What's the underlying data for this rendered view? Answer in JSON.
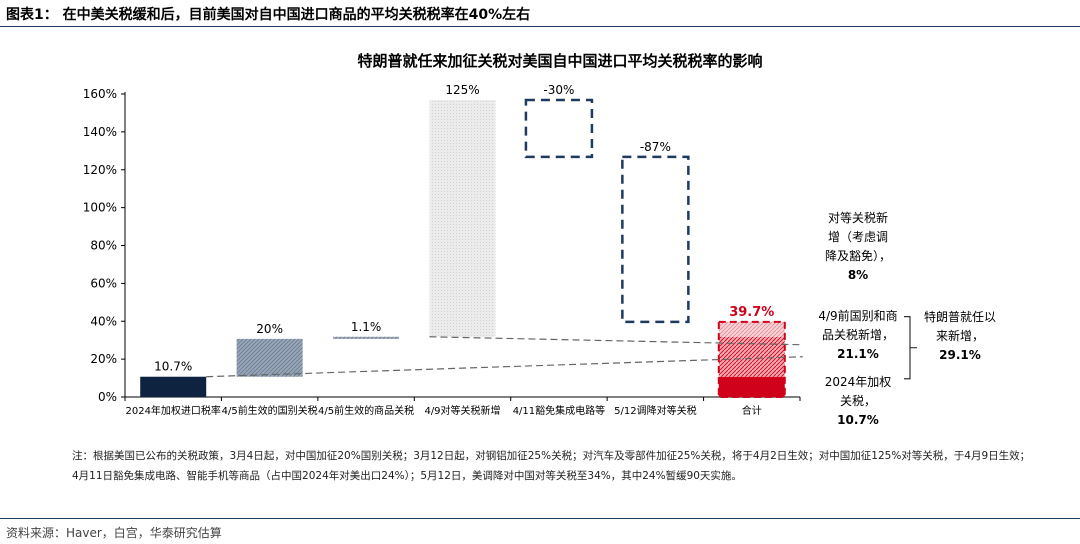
{
  "figure": {
    "title": "图表1：  在中美关税缓和后，目前美国对自中国进口商品的平均关税税率在40%左右",
    "note_line1": "注：根据美国已公布的关税政策，3月4日起，对中国加征20%国别关税；3月12日起，对钢铝加征25%关税；对汽车及零部件加征25%关税，将于4月2日生效；对中国加征125%对等关税，于4月9日生效；",
    "note_line2": "4月11日豁免集成电路、智能手机等商品（占中国2024年对美出口24%）；5月12日，美调降对中国对等关税至34%，其中24%暂缓90天实施。",
    "source": "资料来源：Haver，白宫，华泰研究估算"
  },
  "colors": {
    "navy": "#0d2340",
    "steel": "#8a9aae",
    "light_gray": "#e6e6e6",
    "dash_navy": "#1f3a5f",
    "red": "#d0021b",
    "pink": "#f3c6cb"
  },
  "chart_data": {
    "type": "bar",
    "subtype": "waterfall",
    "title": "特朗普就任来加征关税对美国自中国进口平均关税税率的影响",
    "ylim": [
      0,
      160
    ],
    "yticks": [
      0,
      20,
      40,
      60,
      80,
      100,
      120,
      140,
      160
    ],
    "y_tick_labels": [
      "0%",
      "20%",
      "40%",
      "60%",
      "80%",
      "100%",
      "120%",
      "140%",
      "160%"
    ],
    "categories": [
      "2024年加权进口税率",
      "4/5前生效的国别关税",
      "4/5前生效的商品关税",
      "4/9对等关税新增",
      "4/11豁免集成电路等",
      "5/12调降对等关税",
      "合计"
    ],
    "steps": [
      {
        "category": "2024年加权进口税率",
        "start": 0,
        "end": 10.7,
        "label": "10.7%",
        "style": "navy"
      },
      {
        "category": "4/5前生效的国别关税",
        "start": 10.7,
        "end": 30.7,
        "label": "20%",
        "style": "steel-hatch"
      },
      {
        "category": "4/5前生效的商品关税",
        "start": 30.7,
        "end": 31.8,
        "label": "1.1%",
        "style": "steel-hatch"
      },
      {
        "category": "4/9对等关税新增",
        "start": 31.8,
        "end": 156.8,
        "label": "125%",
        "style": "gray-dots"
      },
      {
        "category": "4/11豁免集成电路等",
        "start": 156.8,
        "end": 126.8,
        "label": "-30%",
        "style": "dashed"
      },
      {
        "category": "5/12调降对等关税",
        "start": 126.8,
        "end": 39.7,
        "label": "-87%",
        "style": "dashed"
      }
    ],
    "total": {
      "category": "合计",
      "value": 39.7,
      "label": "39.7%",
      "segments": [
        {
          "name": "2024年加权关税",
          "value": 10.7,
          "label_lines": [
            "2024年加权",
            "关税，"
          ],
          "value_label": "10.7%"
        },
        {
          "name": "4/9前国别和商品关税新增",
          "value": 21.1,
          "label_lines": [
            "4/9前国别和商",
            "品关税新增，"
          ],
          "value_label": "21.1%"
        },
        {
          "name": "对等关税新增（考虑调降及豁免）",
          "value": 8,
          "label_lines": [
            "对等关税新",
            "增（考虑调",
            "降及豁免），"
          ],
          "value_label": "8%"
        }
      ]
    },
    "brace_annotation": {
      "label_lines": [
        "特朗普就任以",
        "来新增，"
      ],
      "value_label": "29.1%"
    },
    "grid": false,
    "legend": "none"
  }
}
